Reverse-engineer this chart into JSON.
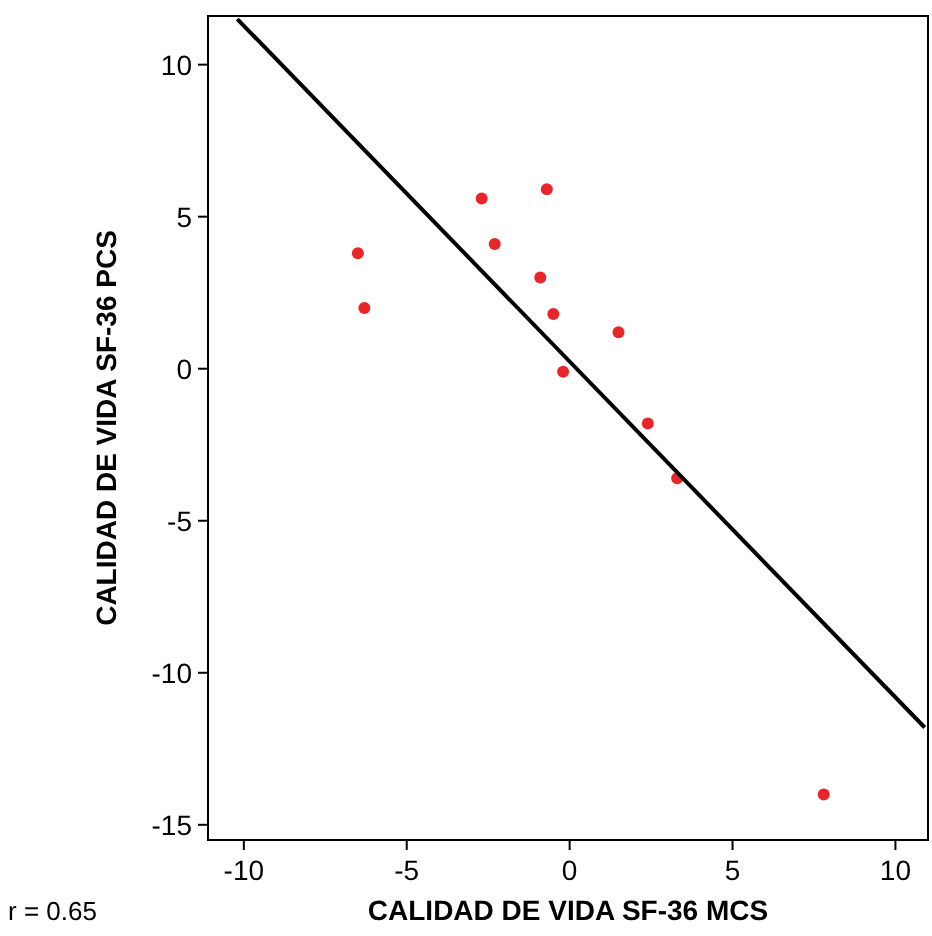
{
  "chart_data": {
    "type": "scatter",
    "xlabel": "CALIDAD DE VIDA SF-36 MCS",
    "ylabel": "CALIDAD DE VIDA SF-36 PCS",
    "annotations": [
      "r = 0.65"
    ],
    "xlim": [
      -11.1,
      11
    ],
    "ylim": [
      -15.5,
      11.6
    ],
    "xticks": [
      -10,
      -5,
      0,
      5,
      10
    ],
    "yticks": [
      -15,
      -10,
      -5,
      0,
      5,
      10
    ],
    "grid": false,
    "marker": "circle",
    "series": [
      {
        "type": "scatter",
        "color": "#e8262a",
        "x": [
          -6.5,
          -6.3,
          -2.7,
          -2.3,
          -0.7,
          -0.9,
          -0.5,
          -0.2,
          1.5,
          2.4,
          3.3,
          7.8
        ],
        "values": [
          3.8,
          2.0,
          5.6,
          4.1,
          5.9,
          3.0,
          1.8,
          -0.1,
          1.2,
          -1.8,
          -3.6,
          -14.0
        ]
      },
      {
        "type": "line",
        "color": "#000000",
        "marker": "none",
        "x": [
          -10.2,
          10.9
        ],
        "values": [
          11.5,
          -11.8
        ]
      }
    ]
  }
}
